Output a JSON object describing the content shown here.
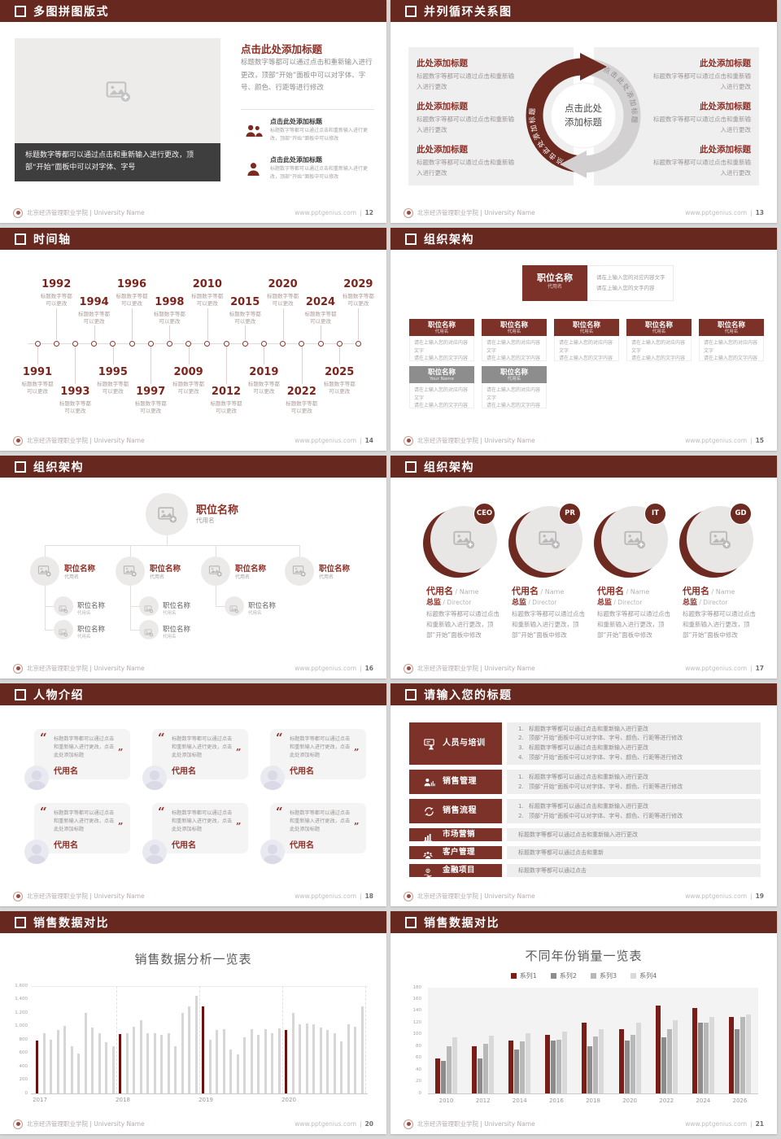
{
  "footer": {
    "brand": "北京经济管理职业学院 | University Name",
    "site_label": "www.pptgenius.com",
    "divider": "|"
  },
  "colors": {
    "header_maroon": "#67281f",
    "accent_red": "#8c2f26",
    "deep_red_bar": "#6e100b",
    "gray_bar": "#d6d6d6",
    "panel_gray": "#efeeee",
    "caption_dark": "#3f3e3e"
  },
  "slides": [
    {
      "id": "12",
      "title": "多图拼图版式",
      "page_no": "12",
      "caption": "标题数字等都可以通过点击和重新输入进行更改，顶部“开始”面板中可以对字体、字号",
      "heading": "点击此处添加标题",
      "body": "标题数字等都可以通过点击和重新输入进行更改，顶部“开始”面板中可以对字体、字号、颜色、行距等进行修改",
      "items": [
        {
          "icon": "people-icon",
          "title": "点击此处添加标题",
          "text": "标题数字等都可以通过点击和重新输入进行更改，顶部“开始”面板中可以修改"
        },
        {
          "icon": "person-icon",
          "title": "点击此处添加标题",
          "text": "标题数字等都可以通过点击和重新输入进行更改，顶部“开始”面板中可以修改"
        }
      ]
    },
    {
      "id": "13",
      "title": "并列循环关系图",
      "page_no": "13",
      "center_line1": "点击此处",
      "center_line2": "添加标题",
      "arc_label_left": "点击此处添加标题",
      "arc_label_right": "点击此处添加标题",
      "item_title": "此处添加标题",
      "item_text_line1": "标题数字等都可以通过点击和重",
      "item_text_line2": "新输入进行更改",
      "left_item_count": 3,
      "right_item_count": 3
    },
    {
      "id": "14",
      "title": "时间轴",
      "page_no": "14",
      "note_line1": "标题数字等都",
      "note_line2": "可以更改",
      "years_above": [
        "1992",
        "1994",
        "1996",
        "1998",
        "2010",
        "2015",
        "2020",
        "2024",
        "2029"
      ],
      "years_below": [
        "1991",
        "1993",
        "1995",
        "1997",
        "2009",
        "2012",
        "2019",
        "2022",
        "2025"
      ]
    },
    {
      "id": "15",
      "title": "组织架构",
      "page_no": "15",
      "root_title": "职位名称",
      "root_sub": "代用名",
      "info_line1": "请在上输入您的对应内容文字",
      "info_line2": "请在上输入您的文字内容",
      "card_title": "职位名称",
      "card_sub": "代用名",
      "desc_line1": "请在上输入您的对应内容文字",
      "desc_line2": "请在上输入您的文字内容",
      "row1_count": 5,
      "row2_subs": [
        "Your Name",
        "代用名"
      ]
    },
    {
      "id": "16",
      "title": "组织架构",
      "page_no": "16",
      "node_title": "职位名称",
      "node_sub": "代用名",
      "children": 4,
      "grandchildren": [
        2,
        2,
        1,
        0
      ]
    },
    {
      "id": "17",
      "title": "组织架构",
      "page_no": "17",
      "badges": [
        "CEO",
        "PR",
        "IT",
        "GD"
      ],
      "name": "代用名",
      "name_en": "Name",
      "role": "总监",
      "role_en": "Director",
      "body": "标题数字等都可以通过点击和重新输入进行更改，顶部“开始”面板中修改"
    },
    {
      "id": "18",
      "title": "人物介绍",
      "page_no": "18",
      "quote": "标题数字等都可以通过点击和重新输入进行更改，点击此处添加标题",
      "name": "代用名",
      "cards": 6
    },
    {
      "id": "19",
      "title": "请输入您的标题",
      "page_no": "19",
      "rows": [
        {
          "icon": "training-icon",
          "label": "人员与培训",
          "lines": [
            {
              "n": "1.",
              "t": "标题数字等都可以通过点击和重新输入进行更改"
            },
            {
              "n": "2.",
              "t": "顶部“开始”面板中可以对字体、字号、颜色、行距等进行修改"
            },
            {
              "n": "3.",
              "t": "标题数字等都可以通过点击和重新输入进行更改"
            },
            {
              "n": "4.",
              "t": "顶部“开始”面板中可以对字体、字号、颜色、行距等进行修改"
            }
          ]
        },
        {
          "icon": "sales-mgmt-icon",
          "label": "销售管理",
          "lines": [
            {
              "n": "1.",
              "t": "标题数字等都可以通过点击和重新输入进行更改"
            },
            {
              "n": "2.",
              "t": "顶部“开始”面板中可以对字体、字号、颜色、行距等进行修改"
            }
          ]
        },
        {
          "icon": "process-icon",
          "label": "销售流程",
          "lines": [
            {
              "n": "1.",
              "t": "标题数字等都可以通过点击和重新输入进行更改"
            },
            {
              "n": "2.",
              "t": "顶部“开始”面板中可以对字体、字号、颜色、行距等进行修改"
            }
          ]
        },
        {
          "icon": "market-icon",
          "label": "市场营销",
          "lines": [
            {
              "n": "",
              "t": "标题数字等都可以通过点击和重新输入进行更改"
            }
          ]
        },
        {
          "icon": "customer-icon",
          "label": "客户管理",
          "lines": [
            {
              "n": "",
              "t": "标题数字等都可以通过点击和重新"
            }
          ]
        },
        {
          "icon": "finance-icon",
          "label": "金融项目",
          "lines": [
            {
              "n": "",
              "t": "标题数字等都可以通过点击"
            }
          ]
        }
      ]
    },
    {
      "id": "20",
      "title": "销售数据对比",
      "page_no": "20",
      "chart_ref": 0
    },
    {
      "id": "21",
      "title": "销售数据对比",
      "page_no": "21",
      "chart_ref": 1
    }
  ],
  "chart_data": [
    {
      "type": "bar",
      "title": "销售数据分析一览表",
      "categories": [
        "2017",
        "2018",
        "2019",
        "2020"
      ],
      "group_size": 12,
      "values": [
        790,
        900,
        800,
        950,
        1010,
        700,
        600,
        1200,
        980,
        900,
        760,
        700,
        880,
        900,
        1000,
        1090,
        900,
        900,
        870,
        900,
        700,
        1200,
        1300,
        1450,
        1300,
        800,
        950,
        960,
        660,
        580,
        840,
        960,
        870,
        960,
        900,
        970,
        950,
        1200,
        1030,
        1040,
        1030,
        980,
        950,
        900,
        780,
        1030,
        1000,
        1300
      ],
      "highlight_indices": [
        0,
        12,
        24,
        36
      ],
      "bar_color": "#d6d6d6",
      "highlight_color": "#6e100b",
      "ylim": [
        0,
        1600
      ],
      "ytick_step": 200,
      "grid": "top-line-and-dashed-group-separators",
      "legend": "none"
    },
    {
      "type": "bar",
      "title": "不同年份销量一览表",
      "categories": [
        "2010",
        "2012",
        "2014",
        "2016",
        "2018",
        "2020",
        "2022",
        "2024",
        "2026"
      ],
      "series": [
        {
          "name": "系列1",
          "color": "#7a1d16",
          "values": [
            60,
            80,
            90,
            100,
            120,
            110,
            150,
            145,
            130
          ]
        },
        {
          "name": "系列2",
          "color": "#8c8c8c",
          "values": [
            55,
            60,
            75,
            90,
            80,
            90,
            95,
            120,
            110
          ]
        },
        {
          "name": "系列3",
          "color": "#b8b8b8",
          "values": [
            80,
            85,
            88,
            92,
            97,
            100,
            110,
            120,
            130
          ]
        },
        {
          "name": "系列4",
          "color": "#d9d9d9",
          "values": [
            95,
            98,
            102,
            105,
            110,
            120,
            125,
            130,
            135
          ]
        }
      ],
      "ylim": [
        0,
        180
      ],
      "ytick_step": 20,
      "legend_position": "top"
    }
  ]
}
